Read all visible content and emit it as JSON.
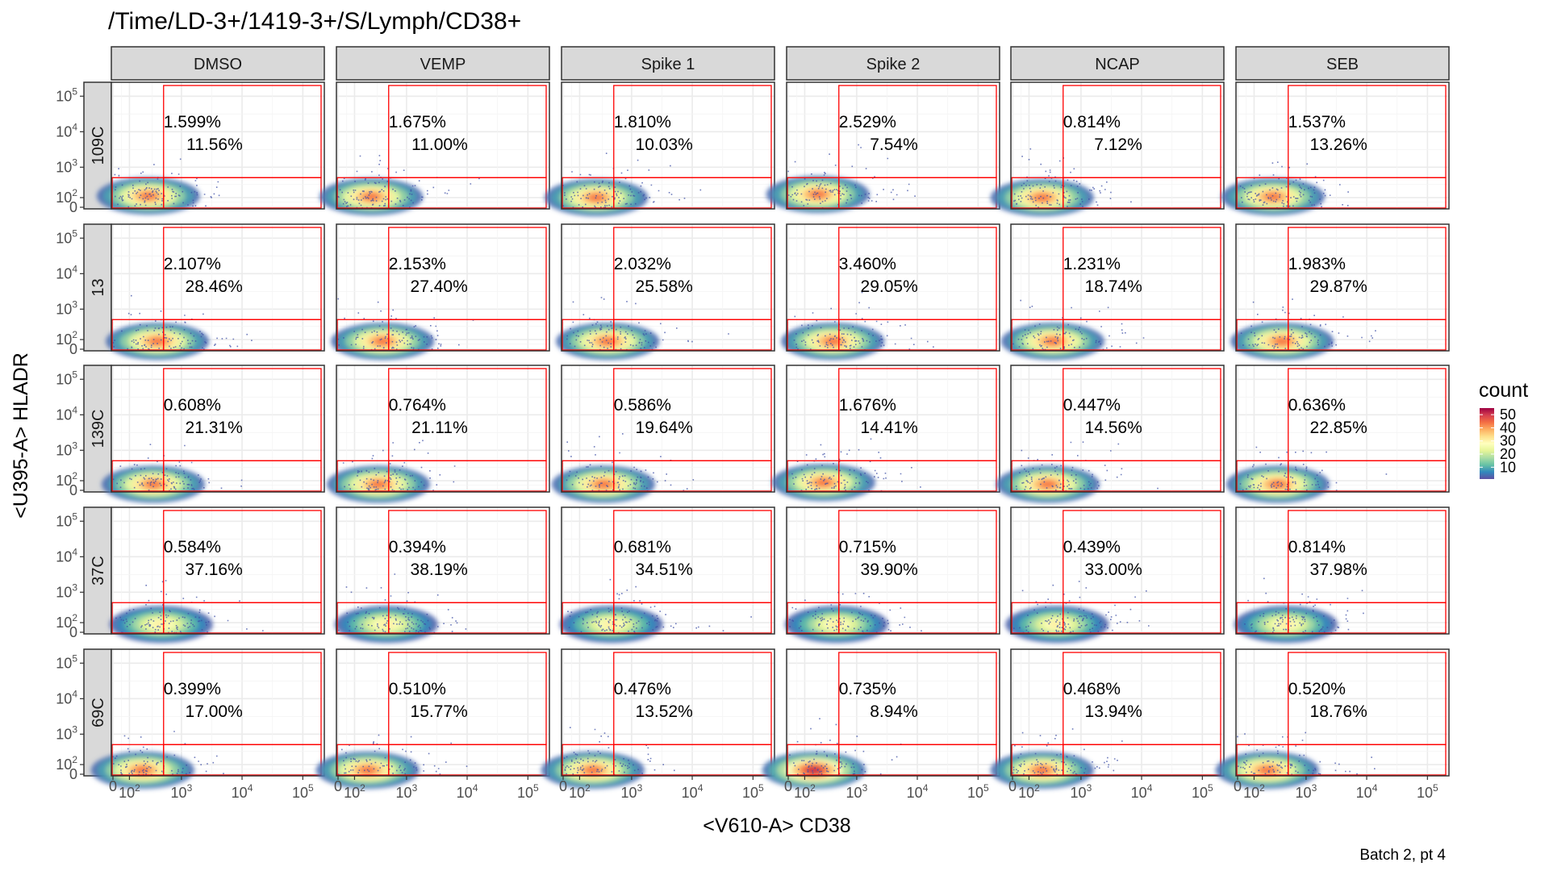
{
  "chart_data": {
    "type": "heatmap",
    "subtype": "faceted flow cytometry 2D density (hexbin) with quadrant gate",
    "title": "/Time/LD-3+/1419-3+/S/Lymph/CD38+",
    "xlabel": "<V610-A> CD38",
    "ylabel": "<U395-A> HLADR",
    "caption": "Batch 2, pt 4",
    "columns": [
      "DMSO",
      "VEMP",
      "Spike 1",
      "Spike 2",
      "NCAP",
      "SEB"
    ],
    "rows": [
      "109C",
      "13",
      "139C",
      "37C",
      "69C"
    ],
    "x_ticks": [
      {
        "base": "0",
        "exp": ""
      },
      {
        "base": "10",
        "exp": "2"
      },
      {
        "base": "10",
        "exp": "3"
      },
      {
        "base": "10",
        "exp": "4"
      },
      {
        "base": "10",
        "exp": "5"
      }
    ],
    "y_ticks": [
      {
        "base": "10",
        "exp": "5"
      },
      {
        "base": "10",
        "exp": "4"
      },
      {
        "base": "10",
        "exp": "3"
      },
      {
        "base": "10",
        "exp": "2"
      },
      {
        "base": "0",
        "exp": ""
      }
    ],
    "transform": "biexponential (arcsinh-like)",
    "gate": {
      "x_min": 500,
      "x_max": 200000,
      "y_min": 500,
      "y_max": 200000
    },
    "gate_color": "#ff0000",
    "cells": [
      [
        {
          "upper_right": "1.599%",
          "lower_right": "11.56%",
          "density_center": [
            200,
            120
          ]
        },
        {
          "upper_right": "1.675%",
          "lower_right": "11.00%",
          "density_center": [
            180,
            110
          ]
        },
        {
          "upper_right": "1.810%",
          "lower_right": "10.03%",
          "density_center": [
            180,
            100
          ]
        },
        {
          "upper_right": "2.529%",
          "lower_right": "7.54%",
          "density_center": [
            150,
            140
          ]
        },
        {
          "upper_right": "0.814%",
          "lower_right": "7.12%",
          "density_center": [
            150,
            100
          ]
        },
        {
          "upper_right": "1.537%",
          "lower_right": "13.26%",
          "density_center": [
            200,
            110
          ]
        }
      ],
      [
        {
          "upper_right": "2.107%",
          "lower_right": "28.46%",
          "density_center": [
            300,
            80
          ]
        },
        {
          "upper_right": "2.153%",
          "lower_right": "27.40%",
          "density_center": [
            300,
            80
          ]
        },
        {
          "upper_right": "2.032%",
          "lower_right": "25.58%",
          "density_center": [
            300,
            80
          ]
        },
        {
          "upper_right": "3.460%",
          "lower_right": "29.05%",
          "density_center": [
            300,
            80
          ]
        },
        {
          "upper_right": "1.231%",
          "lower_right": "18.74%",
          "density_center": [
            250,
            80
          ]
        },
        {
          "upper_right": "1.983%",
          "lower_right": "29.87%",
          "density_center": [
            300,
            80
          ]
        }
      ],
      [
        {
          "upper_right": "0.608%",
          "lower_right": "21.31%",
          "density_center": [
            250,
            60
          ]
        },
        {
          "upper_right": "0.764%",
          "lower_right": "21.11%",
          "density_center": [
            250,
            60
          ]
        },
        {
          "upper_right": "0.586%",
          "lower_right": "19.64%",
          "density_center": [
            250,
            60
          ]
        },
        {
          "upper_right": "1.676%",
          "lower_right": "14.41%",
          "density_center": [
            200,
            80
          ]
        },
        {
          "upper_right": "0.447%",
          "lower_right": "14.56%",
          "density_center": [
            200,
            60
          ]
        },
        {
          "upper_right": "0.636%",
          "lower_right": "22.85%",
          "density_center": [
            250,
            60
          ]
        }
      ],
      [
        {
          "upper_right": "0.584%",
          "lower_right": "37.16%",
          "density_center": [
            350,
            80
          ]
        },
        {
          "upper_right": "0.394%",
          "lower_right": "38.19%",
          "density_center": [
            350,
            80
          ]
        },
        {
          "upper_right": "0.681%",
          "lower_right": "34.51%",
          "density_center": [
            350,
            80
          ]
        },
        {
          "upper_right": "0.715%",
          "lower_right": "39.90%",
          "density_center": [
            350,
            80
          ]
        },
        {
          "upper_right": "0.439%",
          "lower_right": "33.00%",
          "density_center": [
            300,
            80
          ]
        },
        {
          "upper_right": "0.814%",
          "lower_right": "37.98%",
          "density_center": [
            350,
            80
          ]
        }
      ],
      [
        {
          "upper_right": "0.399%",
          "lower_right": "17.00%",
          "density_center": [
            150,
            40
          ]
        },
        {
          "upper_right": "0.510%",
          "lower_right": "15.77%",
          "density_center": [
            150,
            40
          ]
        },
        {
          "upper_right": "0.476%",
          "lower_right": "13.52%",
          "density_center": [
            150,
            40
          ]
        },
        {
          "upper_right": "0.735%",
          "lower_right": "8.94%",
          "density_center": [
            120,
            40
          ]
        },
        {
          "upper_right": "0.468%",
          "lower_right": "13.94%",
          "density_center": [
            150,
            40
          ]
        },
        {
          "upper_right": "0.520%",
          "lower_right": "18.76%",
          "density_center": [
            150,
            40
          ]
        }
      ]
    ],
    "legend": {
      "title": "count",
      "ticks": [
        "10",
        "20",
        "30",
        "40",
        "50"
      ],
      "range": [
        1,
        55
      ],
      "position": "right",
      "palette": [
        "#5e4fa2",
        "#3288bd",
        "#66c2a5",
        "#abdda4",
        "#e6f598",
        "#ffffbf",
        "#fee08b",
        "#fdae61",
        "#f46d43",
        "#d53e4f",
        "#9e0142"
      ]
    },
    "grid": true,
    "panel_background": "#ffffff",
    "gridline_color": "#ebebeb",
    "strip_fill": "#d9d9d9"
  }
}
